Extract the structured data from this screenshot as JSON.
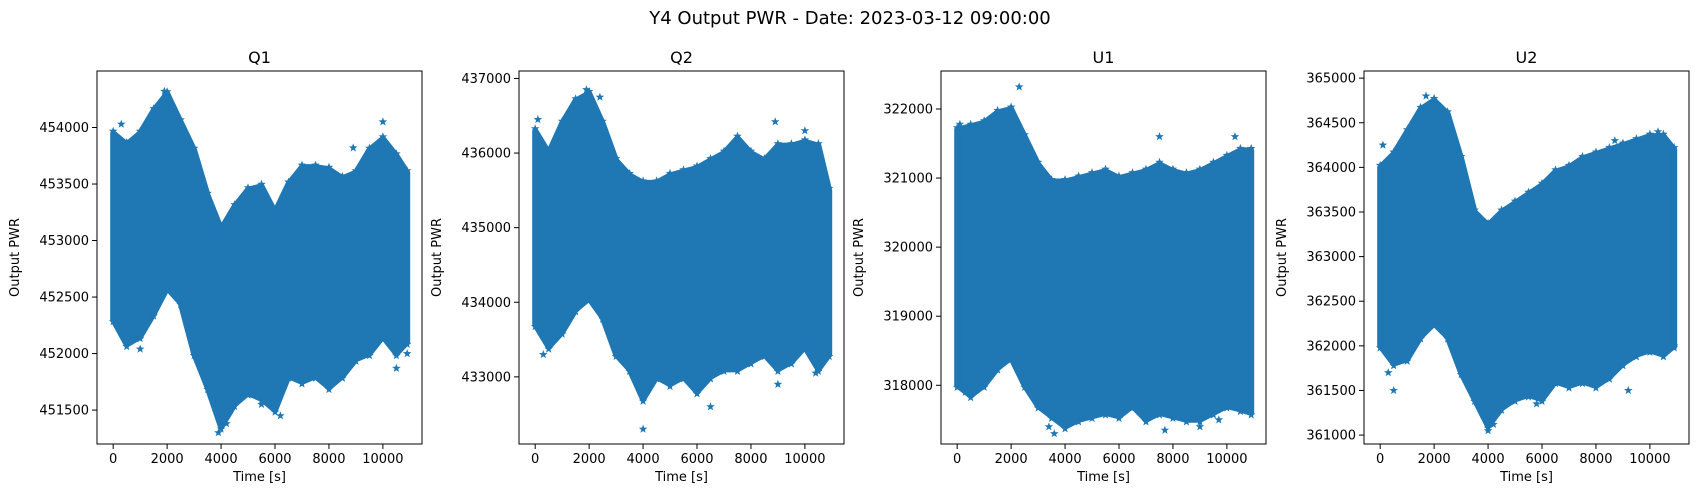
{
  "figure": {
    "suptitle": "Y4 Output PWR - Date: 2023-03-12 09:00:00"
  },
  "colors": {
    "series": "#1f77b4"
  },
  "chart_data": [
    {
      "type": "scatter",
      "marker": "star",
      "title": "Q1",
      "xlabel": "Time [s]",
      "ylabel": "Output PWR",
      "xlim": [
        -600,
        11450
      ],
      "ylim": [
        451200,
        454500
      ],
      "xticks": [
        0,
        2000,
        4000,
        6000,
        8000,
        10000
      ],
      "yticks": [
        451500,
        452000,
        452500,
        453000,
        453500,
        454000
      ],
      "x": [
        0,
        500,
        1000,
        1500,
        2000,
        2500,
        3000,
        3500,
        4000,
        4500,
        5000,
        5500,
        6000,
        6500,
        7000,
        7500,
        8000,
        8500,
        9000,
        9500,
        10000,
        10500,
        10900
      ],
      "y_upper": [
        453950,
        453850,
        453950,
        454150,
        454300,
        454050,
        453800,
        453400,
        453100,
        453300,
        453450,
        453480,
        453250,
        453500,
        453650,
        453650,
        453630,
        453550,
        453600,
        453800,
        453900,
        453750,
        453600
      ],
      "y_lower": [
        452300,
        452080,
        452150,
        452350,
        452580,
        452450,
        452000,
        451700,
        451350,
        451550,
        451650,
        451600,
        451500,
        451800,
        451750,
        451800,
        451700,
        451800,
        451950,
        452000,
        452150,
        452000,
        452100
      ],
      "points": [
        [
          300,
          454030
        ],
        [
          1000,
          452040
        ],
        [
          1900,
          454320
        ],
        [
          3600,
          451700
        ],
        [
          3900,
          451300
        ],
        [
          4200,
          451380
        ],
        [
          5500,
          451550
        ],
        [
          6200,
          451450
        ],
        [
          8900,
          453820
        ],
        [
          10000,
          454050
        ],
        [
          10500,
          451870
        ],
        [
          10900,
          452000
        ]
      ]
    },
    {
      "type": "scatter",
      "marker": "star",
      "title": "Q2",
      "xlabel": "Time [s]",
      "ylabel": "Output PWR",
      "xlim": [
        -600,
        11450
      ],
      "ylim": [
        432100,
        437100
      ],
      "xticks": [
        0,
        2000,
        4000,
        6000,
        8000,
        10000
      ],
      "yticks": [
        433000,
        434000,
        435000,
        436000,
        437000
      ],
      "x": [
        0,
        500,
        1000,
        1500,
        2000,
        2500,
        3000,
        3500,
        4000,
        4500,
        5000,
        5500,
        6000,
        6500,
        7000,
        7500,
        8000,
        8500,
        9000,
        9500,
        10000,
        10500,
        10900
      ],
      "y_upper": [
        436300,
        436000,
        436400,
        436700,
        436800,
        436400,
        435900,
        435700,
        435600,
        435600,
        435700,
        435750,
        435800,
        435900,
        436000,
        436200,
        436000,
        435900,
        436100,
        436100,
        436150,
        436100,
        435500
      ],
      "y_lower": [
        433700,
        433400,
        433600,
        433900,
        434050,
        433800,
        433300,
        433100,
        432700,
        433000,
        432900,
        433000,
        432800,
        433000,
        433100,
        433100,
        433200,
        433300,
        433100,
        433200,
        433400,
        433100,
        433300
      ],
      "points": [
        [
          100,
          436450
        ],
        [
          300,
          433300
        ],
        [
          1900,
          436850
        ],
        [
          2400,
          436750
        ],
        [
          4000,
          432300
        ],
        [
          4200,
          432900
        ],
        [
          6500,
          432600
        ],
        [
          8900,
          436420
        ],
        [
          9000,
          432900
        ],
        [
          10000,
          436300
        ],
        [
          10400,
          433050
        ]
      ]
    },
    {
      "type": "scatter",
      "marker": "star",
      "title": "U1",
      "xlabel": "Time [s]",
      "ylabel": "Output PWR",
      "xlim": [
        -600,
        11450
      ],
      "ylim": [
        317150,
        322550
      ],
      "xticks": [
        0,
        2000,
        4000,
        6000,
        8000,
        10000
      ],
      "yticks": [
        318000,
        319000,
        320000,
        321000,
        322000
      ],
      "x": [
        0,
        500,
        1000,
        1500,
        2000,
        2500,
        3000,
        3500,
        4000,
        4500,
        5000,
        5500,
        6000,
        6500,
        7000,
        7500,
        8000,
        8500,
        9000,
        9500,
        10000,
        10500,
        10900
      ],
      "y_upper": [
        321700,
        321750,
        321800,
        321950,
        322000,
        321600,
        321200,
        320950,
        320950,
        321000,
        321050,
        321100,
        321000,
        321050,
        321100,
        321200,
        321100,
        321050,
        321100,
        321200,
        321300,
        321400,
        321400
      ],
      "y_lower": [
        318000,
        317850,
        318000,
        318250,
        318400,
        318000,
        317700,
        317550,
        317400,
        317500,
        317550,
        317600,
        317550,
        317700,
        317500,
        317600,
        317550,
        317500,
        317500,
        317600,
        317700,
        317650,
        317600
      ],
      "points": [
        [
          100,
          321780
        ],
        [
          300,
          317900
        ],
        [
          2300,
          322320
        ],
        [
          3400,
          317400
        ],
        [
          3600,
          317300
        ],
        [
          7500,
          321600
        ],
        [
          7700,
          317350
        ],
        [
          9000,
          317400
        ],
        [
          9700,
          317500
        ],
        [
          10300,
          321600
        ]
      ]
    },
    {
      "type": "scatter",
      "marker": "star",
      "title": "U2",
      "xlabel": "Time [s]",
      "ylabel": "Output PWR",
      "xlim": [
        -600,
        11450
      ],
      "ylim": [
        360900,
        365080
      ],
      "xticks": [
        0,
        2000,
        4000,
        6000,
        8000,
        10000
      ],
      "yticks": [
        361000,
        361500,
        362000,
        362500,
        363000,
        363500,
        364000,
        364500,
        365000
      ],
      "x": [
        0,
        500,
        1000,
        1500,
        2000,
        2500,
        3000,
        3500,
        4000,
        4500,
        5000,
        5500,
        6000,
        6500,
        7000,
        7500,
        8000,
        8500,
        9000,
        9500,
        10000,
        10500,
        10900
      ],
      "y_upper": [
        364000,
        364150,
        364400,
        364650,
        364750,
        364600,
        364100,
        363500,
        363350,
        363500,
        363600,
        363700,
        363800,
        363950,
        364000,
        364100,
        364150,
        364200,
        364250,
        364300,
        364350,
        364350,
        364200
      ],
      "y_lower": [
        362000,
        361800,
        361850,
        362100,
        362250,
        362100,
        361700,
        361400,
        361100,
        361300,
        361400,
        361450,
        361400,
        361600,
        361550,
        361600,
        361550,
        361650,
        361800,
        361900,
        361950,
        361900,
        362000
      ],
      "points": [
        [
          100,
          364250
        ],
        [
          300,
          361700
        ],
        [
          500,
          361500
        ],
        [
          1700,
          364800
        ],
        [
          4000,
          361050
        ],
        [
          4200,
          361120
        ],
        [
          5800,
          361350
        ],
        [
          8700,
          364300
        ],
        [
          9200,
          361500
        ],
        [
          10300,
          364400
        ],
        [
          10900,
          362000
        ]
      ]
    }
  ]
}
